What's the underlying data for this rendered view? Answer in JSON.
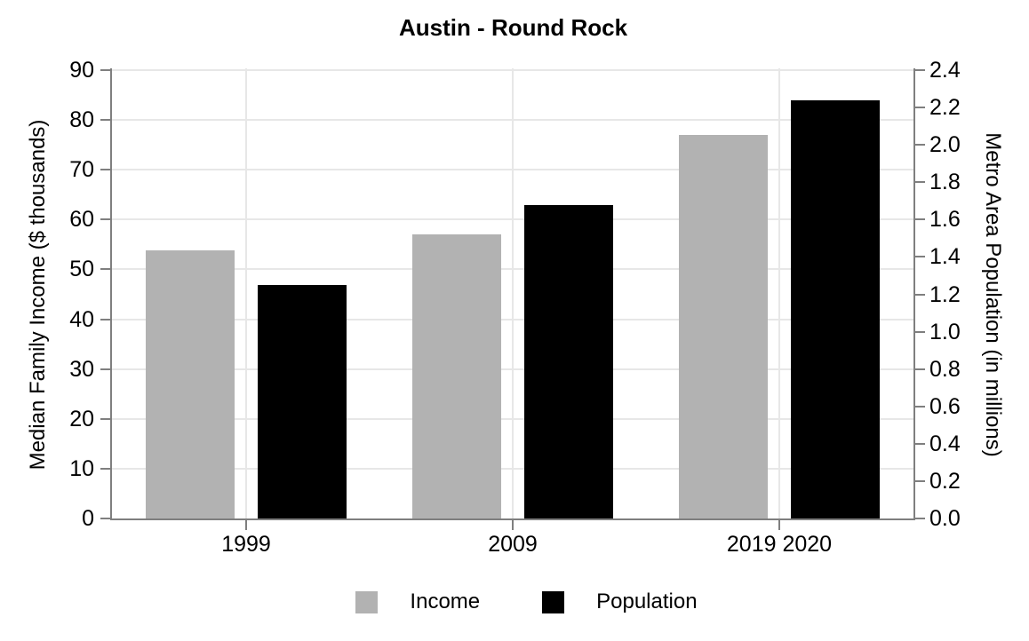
{
  "title": "Austin - Round Rock",
  "colors": {
    "income_bar": "#b2b2b2",
    "population_bar": "#000000",
    "grid_line": "#e7e7e7",
    "axis_line": "#7f7f7f",
    "text": "#000000",
    "background": "#ffffff"
  },
  "chart_data": {
    "type": "bar",
    "title": "Austin - Round Rock",
    "categories": [
      "1999",
      "2009",
      "2019 2020"
    ],
    "series": [
      {
        "name": "Income",
        "axis": "left",
        "color": "#b2b2b2",
        "values": [
          53.8,
          57.0,
          77.0
        ]
      },
      {
        "name": "Population",
        "axis": "right",
        "color": "#000000",
        "values": [
          1.25,
          1.68,
          2.24
        ]
      }
    ],
    "left_axis": {
      "label": "Median Family Income ($ thousands)",
      "min": 0,
      "max": 90,
      "step": 10,
      "tick_labels": [
        "0",
        "10",
        "20",
        "30",
        "40",
        "50",
        "60",
        "70",
        "80",
        "90"
      ]
    },
    "right_axis": {
      "label": "Metro Area Population (in millions)",
      "min": 0,
      "max": 2.4,
      "step": 0.2,
      "tick_labels": [
        "0.0",
        "0.2",
        "0.4",
        "0.6",
        "0.8",
        "1.0",
        "1.2",
        "1.4",
        "1.6",
        "1.8",
        "2.0",
        "2.2",
        "2.4"
      ]
    },
    "x_axis": {
      "tick_labels": [
        "1999",
        "2009",
        "2019 2020"
      ]
    },
    "legend": {
      "position": "bottom",
      "items": [
        {
          "label": "Income",
          "color": "#b2b2b2"
        },
        {
          "label": "Population",
          "color": "#000000"
        }
      ]
    },
    "grid": true,
    "legend_position": "bottom"
  }
}
